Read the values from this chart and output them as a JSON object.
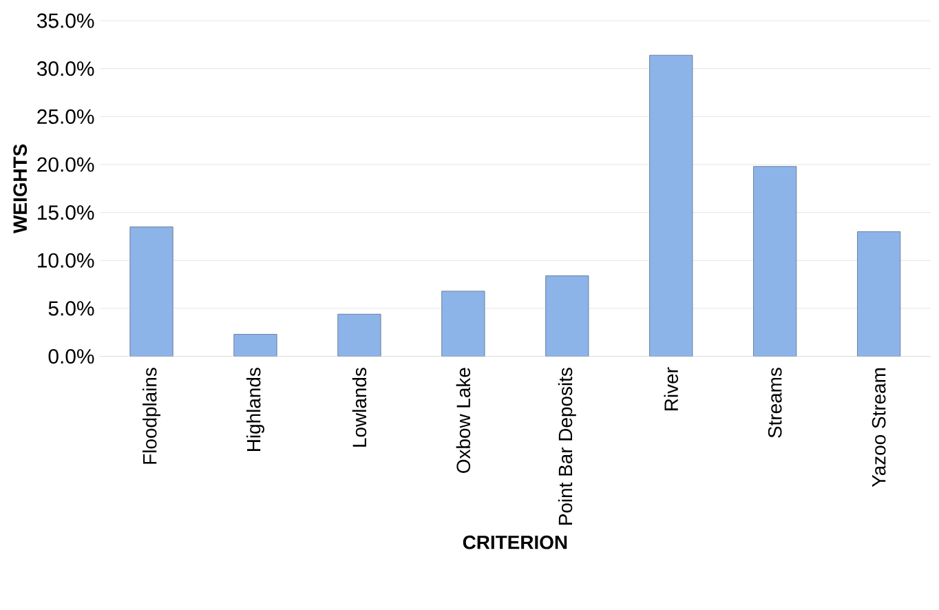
{
  "chart_data": {
    "type": "bar",
    "xlabel": "CRITERION",
    "ylabel": "WEIGHTS",
    "categories": [
      "Floodplains",
      "Highlands",
      "Lowlands",
      "Oxbow Lake",
      "Point Bar Deposits",
      "River",
      "Streams",
      "Yazoo Stream"
    ],
    "values": [
      13.5,
      2.3,
      4.4,
      6.8,
      8.4,
      31.4,
      19.8,
      13.0
    ],
    "color": "#8db4e8",
    "ylim": [
      0,
      35
    ],
    "yticks": [
      {
        "value": 0,
        "label": "0.0%"
      },
      {
        "value": 5,
        "label": "5.0%"
      },
      {
        "value": 10,
        "label": "10.0%"
      },
      {
        "value": 15,
        "label": "15.0%"
      },
      {
        "value": 20,
        "label": "20.0%"
      },
      {
        "value": 25,
        "label": "25.0%"
      },
      {
        "value": 30,
        "label": "30.0%"
      },
      {
        "value": 35,
        "label": "35.0%"
      }
    ],
    "grid": "y"
  }
}
